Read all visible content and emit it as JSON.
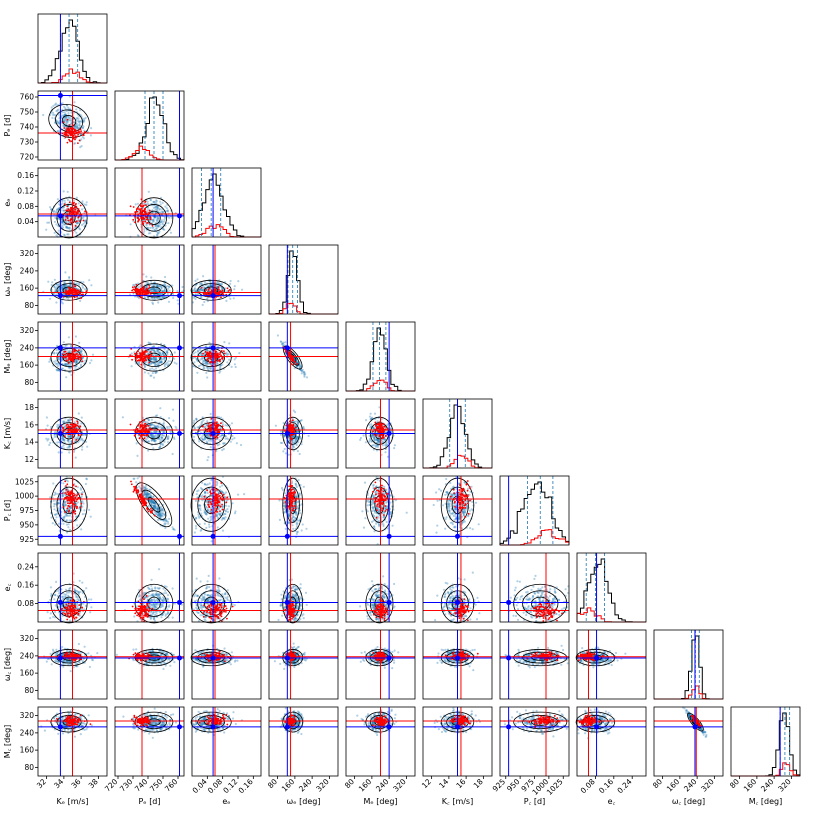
{
  "chart_data": {
    "type": "corner",
    "parameters": [
      {
        "label": "Kₑ [m/s]",
        "short": "K_b [m/s]",
        "ticks": [
          "32",
          "34",
          "36",
          "38"
        ],
        "range": [
          31.0,
          39.0
        ],
        "mean": 34.6,
        "sd": 1.0,
        "skew": 0.1,
        "truth": 33.6,
        "estimate": 35.0
      },
      {
        "label": "Pₑ [d]",
        "short": "P_b [d]",
        "ticks": [
          "720",
          "730",
          "740",
          "750",
          "760"
        ],
        "range": [
          718,
          764
        ],
        "mean": 744,
        "sd": 6.0,
        "skew": 0.3,
        "truth": 761,
        "estimate": 736
      },
      {
        "label": "eₑ",
        "short": "e_b",
        "ticks": [
          "0.04",
          "0.08",
          "0.12",
          "0.16"
        ],
        "range": [
          0.0,
          0.18
        ],
        "mean": 0.05,
        "sd": 0.025,
        "skew": 0.6,
        "truth": 0.055,
        "estimate": 0.06
      },
      {
        "label": "ωₑ [deg]",
        "short": "omega_b [deg]",
        "ticks": [
          "80",
          "160",
          "240",
          "320"
        ],
        "range": [
          40,
          360
        ],
        "mean": 150,
        "sd": 22,
        "skew": 0.2,
        "truth": 125,
        "estimate": 140
      },
      {
        "label": "Mₑ [deg]",
        "short": "M_b [deg]",
        "ticks": [
          "80",
          "160",
          "240",
          "320"
        ],
        "range": [
          40,
          360
        ],
        "mean": 195,
        "sd": 30,
        "skew": 0.1,
        "truth": 240,
        "estimate": 200
      },
      {
        "label": "K꜀ [m/s]",
        "short": "K_c [m/s]",
        "ticks": [
          "12",
          "14",
          "16",
          "18"
        ],
        "range": [
          11.0,
          19.0
        ],
        "mean": 15.0,
        "sd": 0.9,
        "skew": 0.0,
        "truth": 15.0,
        "estimate": 15.4
      },
      {
        "label": "P꜀ [d]",
        "short": "P_c [d]",
        "ticks": [
          "925",
          "950",
          "975",
          "1000",
          "1025"
        ],
        "range": [
          915,
          1035
        ],
        "mean": 985,
        "sd": 22,
        "skew": -0.8,
        "truth": 930,
        "estimate": 995
      },
      {
        "label": "e꜀",
        "short": "e_c",
        "ticks": [
          "0.08",
          "0.16",
          "0.24"
        ],
        "range": [
          0.0,
          0.3
        ],
        "mean": 0.08,
        "sd": 0.04,
        "skew": 0.7,
        "truth": 0.085,
        "estimate": 0.05
      },
      {
        "label": "ω꜀ [deg]",
        "short": "omega_c [deg]",
        "ticks": [
          "80",
          "160",
          "240",
          "320"
        ],
        "range": [
          40,
          360
        ],
        "mean": 232,
        "sd": 18,
        "skew": 0.0,
        "truth": 230,
        "estimate": 236
      },
      {
        "label": "M꜀ [deg]",
        "short": "M_c [deg]",
        "ticks": [
          "80",
          "160",
          "240",
          "320"
        ],
        "range": [
          40,
          360
        ],
        "mean": 290,
        "sd": 22,
        "skew": -0.4,
        "truth": 268,
        "estimate": 295
      }
    ],
    "correlations": {
      "P_b|P_c": -0.95,
      "omega_b|M_b": -0.95,
      "omega_c|M_c": -0.95,
      "K_b|P_b": -0.3
    },
    "truth_color": "#0000ff",
    "estimate_color": "#ff0000",
    "posterior_color": "#1f77b4",
    "quantile_color": "#1f77b4"
  }
}
